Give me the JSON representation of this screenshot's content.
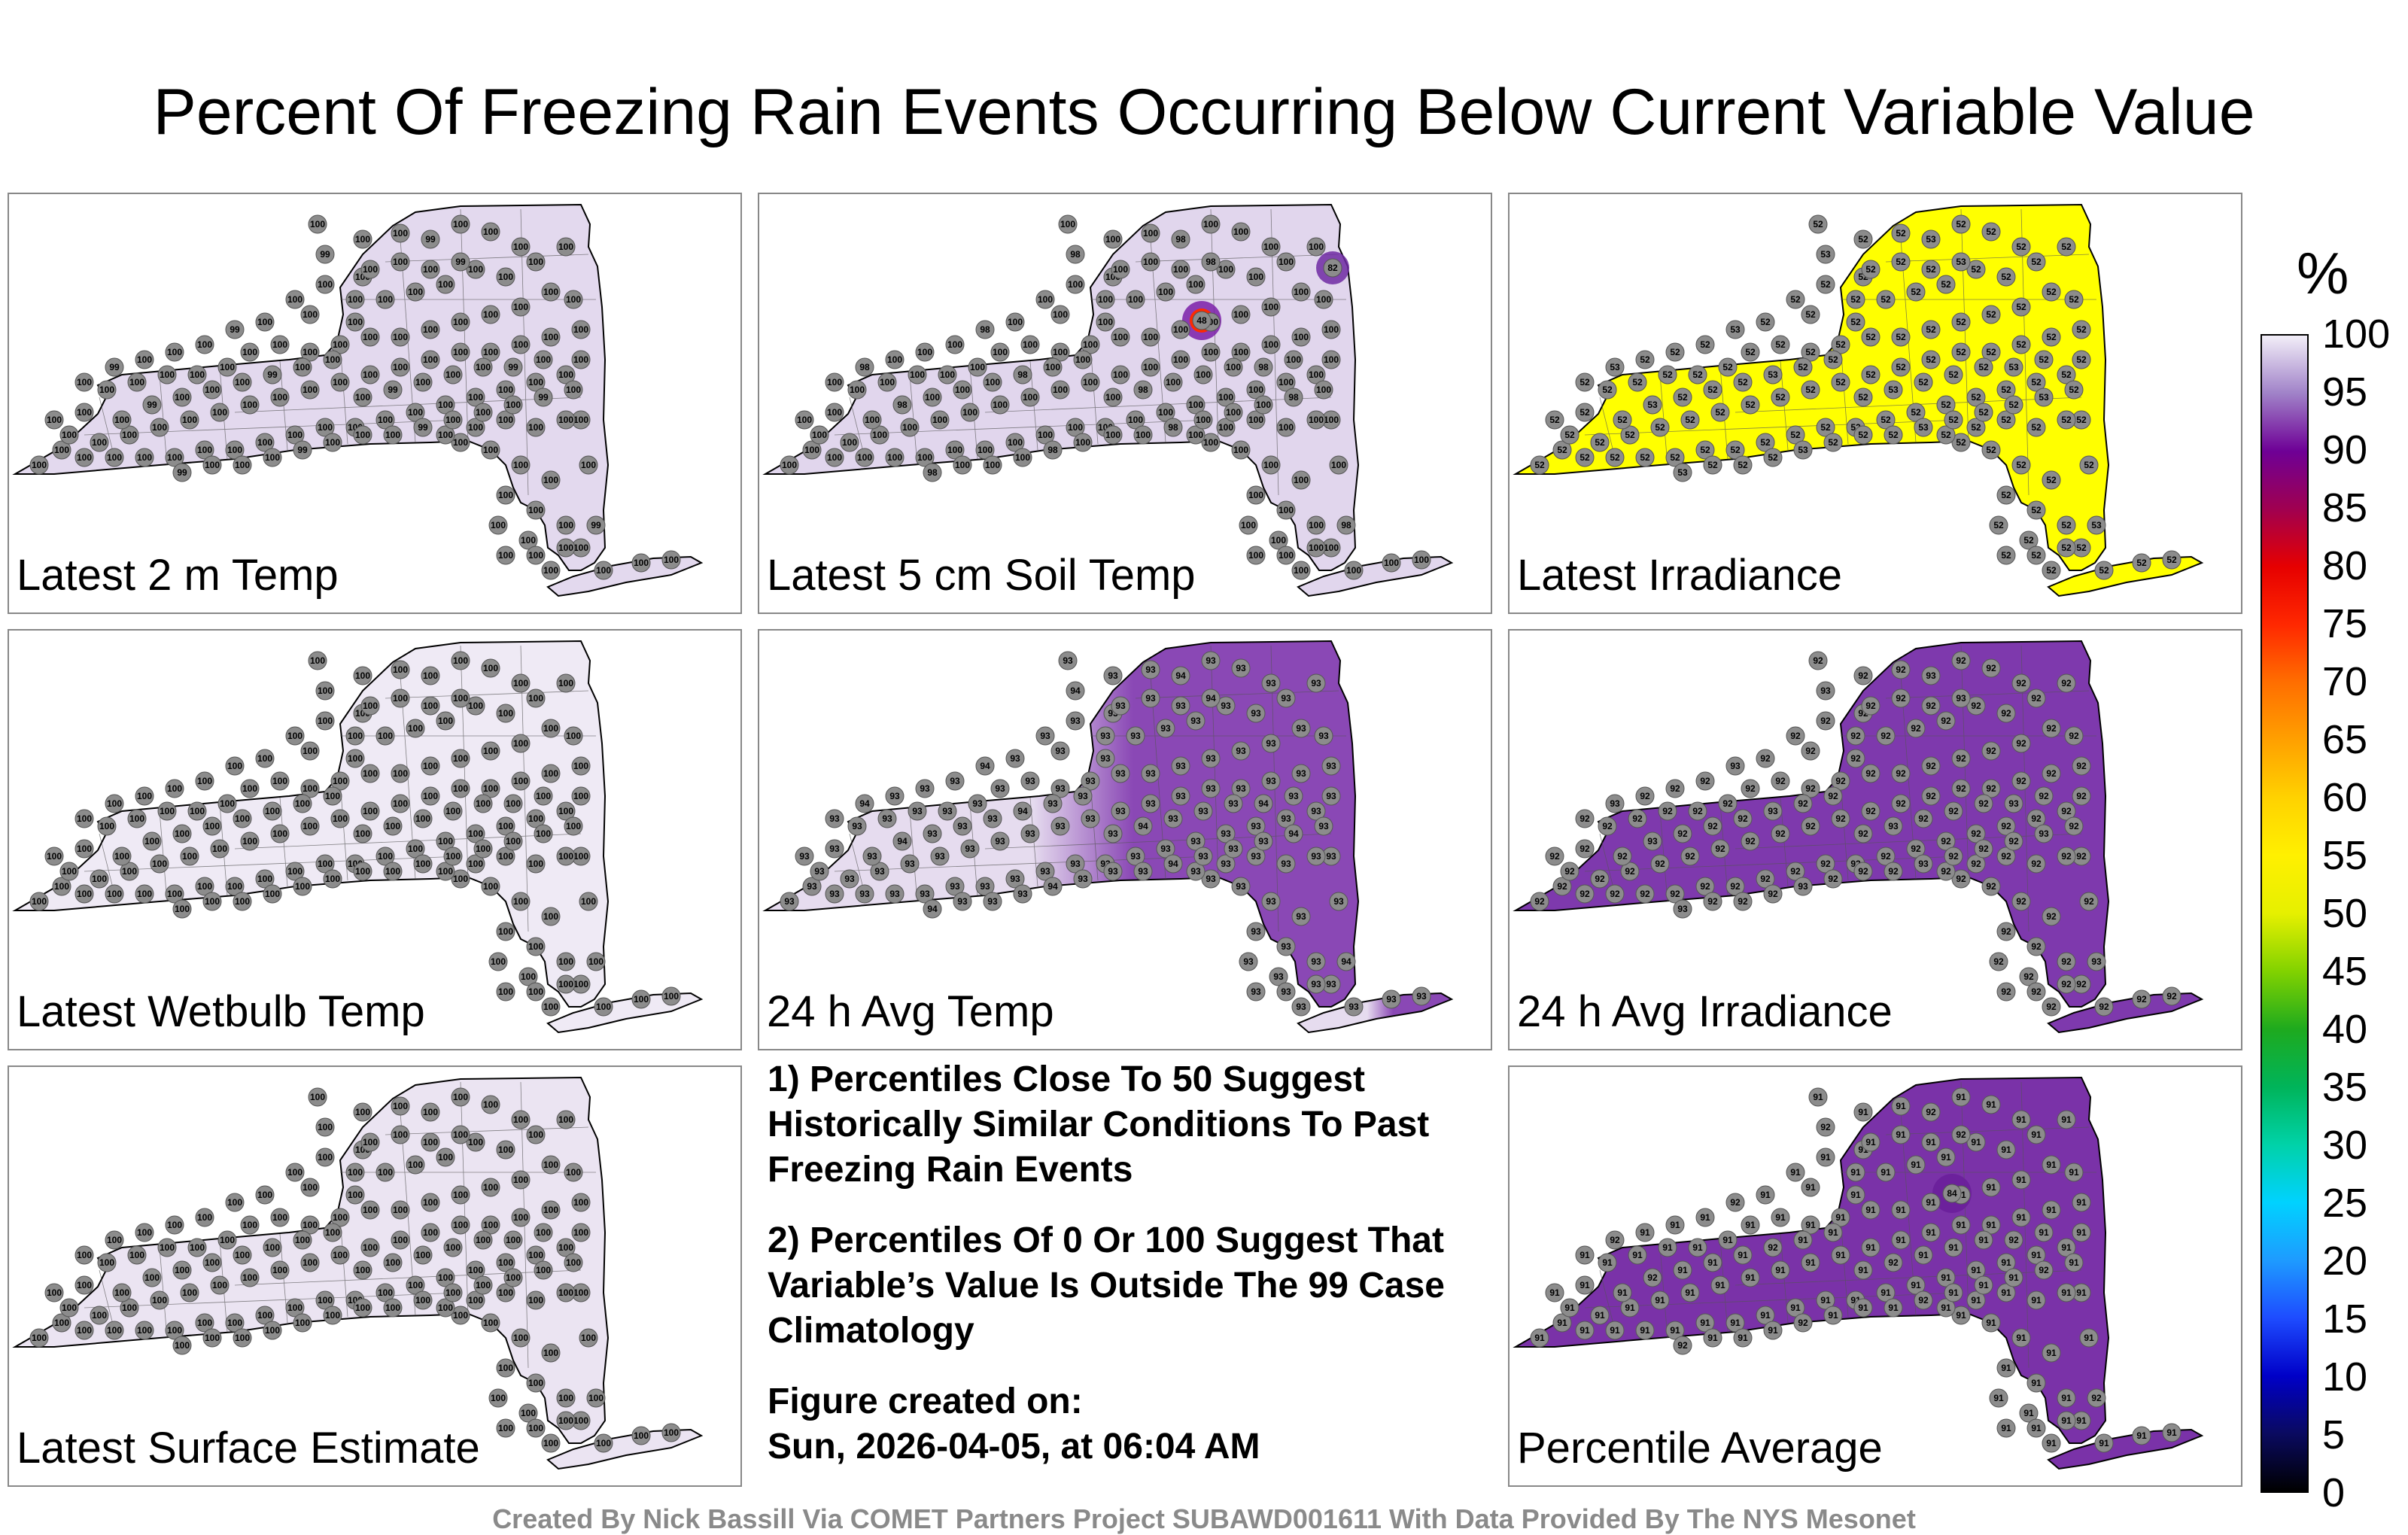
{
  "title": "Percent Of Freezing Rain Events Occurring Below Current Variable Value",
  "panels": [
    {
      "id": "p1",
      "label": "Latest 2 m Temp",
      "fill": "#e3d9ee",
      "station_value": "100",
      "alt_value": "99"
    },
    {
      "id": "p2",
      "label": "Latest 5 cm Soil Temp",
      "fill": "#e1d6ed",
      "station_value": "100",
      "alt_value": "98",
      "anomaly": {
        "value": "48",
        "color": "#7a1fa8"
      },
      "anomaly2": {
        "value": "82",
        "color": "#6f2aa2"
      }
    },
    {
      "id": "p3",
      "label": "Latest Irradiance",
      "fill": "#ffff00",
      "station_value": "52",
      "alt_value": "53"
    },
    {
      "id": "p4",
      "label": "Latest Wetbulb Temp",
      "fill": "#efeaf5",
      "station_value": "100",
      "alt_value": "100"
    },
    {
      "id": "p5",
      "label": "24 h Avg Temp",
      "fill": "#8a48b5",
      "west_fill": "#e6dcef",
      "station_value": "93",
      "alt_value": "94"
    },
    {
      "id": "p6",
      "label": "24 h Avg Irradiance",
      "fill": "#7e39ad",
      "station_value": "92",
      "alt_value": "93"
    },
    {
      "id": "p7",
      "label": "Latest Surface Estimate",
      "fill": "#ebe4f2",
      "station_value": "100",
      "alt_value": "100"
    },
    {
      "id": "p8",
      "label": "Percentile Average",
      "fill": "#7a32a8",
      "station_value": "91",
      "alt_value": "92",
      "anomaly": {
        "value": "84",
        "color": "#6a1f9a"
      }
    }
  ],
  "notes": [
    "1) Percentiles Close To 50 Suggest Historically Similar Conditions To Past Freezing Rain Events",
    "2) Percentiles Of 0 Or 100 Suggest That Variable’s Value Is Outside The 99 Case Climatology",
    "Figure created on:",
    "Sun, 2026-04-05, at 06:04 AM"
  ],
  "legend": {
    "unit": "%",
    "ticks": [
      "100",
      "95",
      "90",
      "85",
      "80",
      "75",
      "70",
      "65",
      "60",
      "55",
      "50",
      "45",
      "40",
      "35",
      "30",
      "25",
      "20",
      "15",
      "10",
      "5",
      "0"
    ],
    "min": 0,
    "max": 100,
    "stops": [
      {
        "v": 0,
        "c": "#000000"
      },
      {
        "v": 5,
        "c": "#0a0a60"
      },
      {
        "v": 10,
        "c": "#0000c8"
      },
      {
        "v": 15,
        "c": "#1e4cff"
      },
      {
        "v": 20,
        "c": "#1e9bff"
      },
      {
        "v": 25,
        "c": "#00d2ff"
      },
      {
        "v": 30,
        "c": "#00d2a8"
      },
      {
        "v": 35,
        "c": "#00b45a"
      },
      {
        "v": 40,
        "c": "#1eaa1e"
      },
      {
        "v": 45,
        "c": "#82d200"
      },
      {
        "v": 50,
        "c": "#e6f000"
      },
      {
        "v": 55,
        "c": "#fff000"
      },
      {
        "v": 60,
        "c": "#ffd200"
      },
      {
        "v": 65,
        "c": "#ffa000"
      },
      {
        "v": 70,
        "c": "#ff6e00"
      },
      {
        "v": 75,
        "c": "#ff2800"
      },
      {
        "v": 80,
        "c": "#e60000"
      },
      {
        "v": 85,
        "c": "#a00050"
      },
      {
        "v": 90,
        "c": "#6e0096"
      },
      {
        "v": 95,
        "c": "#a082c8"
      },
      {
        "v": 100,
        "c": "#f2eef8"
      }
    ]
  },
  "credit": "Created By Nick Bassill Via COMET Partners Project SUBAWD001611 With Data Provided By The NYS Mesonet"
}
